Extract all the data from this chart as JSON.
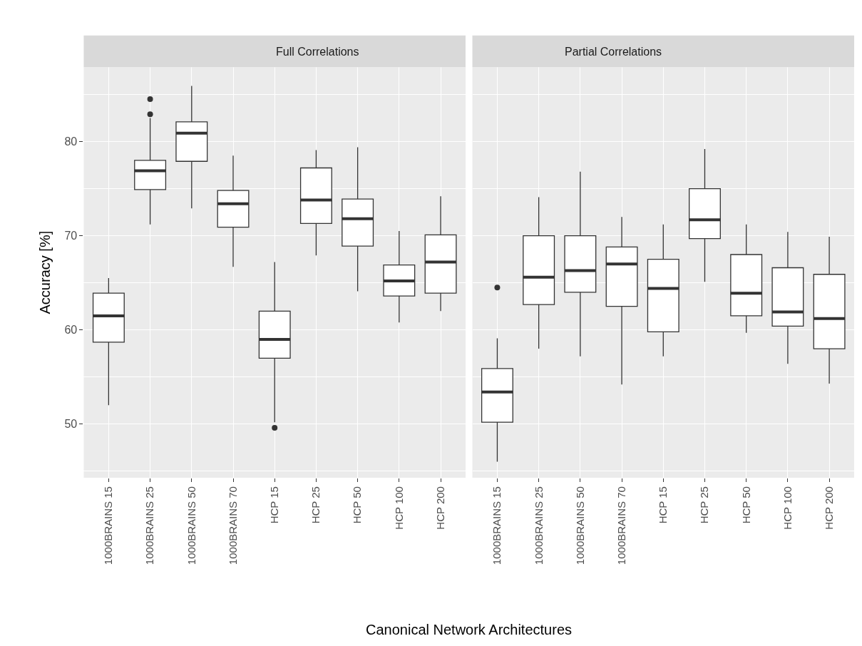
{
  "chart_data": [
    {
      "type": "box",
      "title": "Full Correlations",
      "ylabel": "Accuracy [%]",
      "xlabel": "Canonical Network Architectures",
      "categories": [
        "1000BRAINS 15",
        "1000BRAINS 25",
        "1000BRAINS 50",
        "1000BRAINS 70",
        "HCP 15",
        "HCP 25",
        "HCP 50",
        "HCP 100",
        "HCP 200"
      ],
      "boxes": [
        {
          "low": 52.0,
          "q1": 58.7,
          "median": 61.5,
          "q3": 63.9,
          "high": 65.5
        },
        {
          "low": 71.2,
          "q1": 74.9,
          "median": 76.9,
          "q3": 78.0,
          "high": 82.5,
          "outliers": [
            82.9,
            84.5
          ]
        },
        {
          "low": 72.9,
          "q1": 77.9,
          "median": 80.9,
          "q3": 82.1,
          "high": 85.9
        },
        {
          "low": 66.7,
          "q1": 70.9,
          "median": 73.4,
          "q3": 74.8,
          "high": 78.5
        },
        {
          "low": 50.2,
          "q1": 57.0,
          "median": 59.0,
          "q3": 62.0,
          "high": 67.2,
          "outliers": [
            49.6
          ]
        },
        {
          "low": 67.9,
          "q1": 71.3,
          "median": 73.8,
          "q3": 77.2,
          "high": 79.1
        },
        {
          "low": 64.1,
          "q1": 68.9,
          "median": 71.8,
          "q3": 73.9,
          "high": 79.4
        },
        {
          "low": 60.8,
          "q1": 63.6,
          "median": 65.2,
          "q3": 66.9,
          "high": 70.5
        },
        {
          "low": 62.0,
          "q1": 63.9,
          "median": 67.2,
          "q3": 70.1,
          "high": 74.2
        }
      ],
      "ylim": [
        44.3,
        87.9
      ],
      "yticks": [
        50,
        60,
        70,
        80
      ],
      "grid": true
    },
    {
      "type": "box",
      "title": "Partial Correlations",
      "categories": [
        "1000BRAINS 15",
        "1000BRAINS 25",
        "1000BRAINS 50",
        "1000BRAINS 70",
        "HCP 15",
        "HCP 25",
        "HCP 50",
        "HCP 100",
        "HCP 200"
      ],
      "boxes": [
        {
          "low": 46.0,
          "q1": 50.2,
          "median": 53.4,
          "q3": 55.9,
          "high": 59.1,
          "outliers": [
            64.5
          ]
        },
        {
          "low": 58.0,
          "q1": 62.7,
          "median": 65.6,
          "q3": 70.0,
          "high": 74.1
        },
        {
          "low": 57.2,
          "q1": 64.0,
          "median": 66.3,
          "q3": 70.0,
          "high": 76.8
        },
        {
          "low": 54.2,
          "q1": 62.5,
          "median": 67.0,
          "q3": 68.8,
          "high": 72.0
        },
        {
          "low": 57.2,
          "q1": 59.8,
          "median": 64.4,
          "q3": 67.5,
          "high": 71.2
        },
        {
          "low": 65.1,
          "q1": 69.7,
          "median": 71.7,
          "q3": 75.0,
          "high": 79.2
        },
        {
          "low": 59.7,
          "q1": 61.5,
          "median": 63.9,
          "q3": 68.0,
          "high": 71.2
        },
        {
          "low": 56.4,
          "q1": 60.4,
          "median": 61.9,
          "q3": 66.6,
          "high": 70.4
        },
        {
          "low": 54.3,
          "q1": 58.0,
          "median": 61.2,
          "q3": 65.9,
          "high": 69.9
        }
      ],
      "ylim": [
        44.3,
        87.9
      ],
      "yticks": [
        50,
        60,
        70,
        80
      ],
      "grid": true,
      "tick_labels": "x"
    }
  ]
}
